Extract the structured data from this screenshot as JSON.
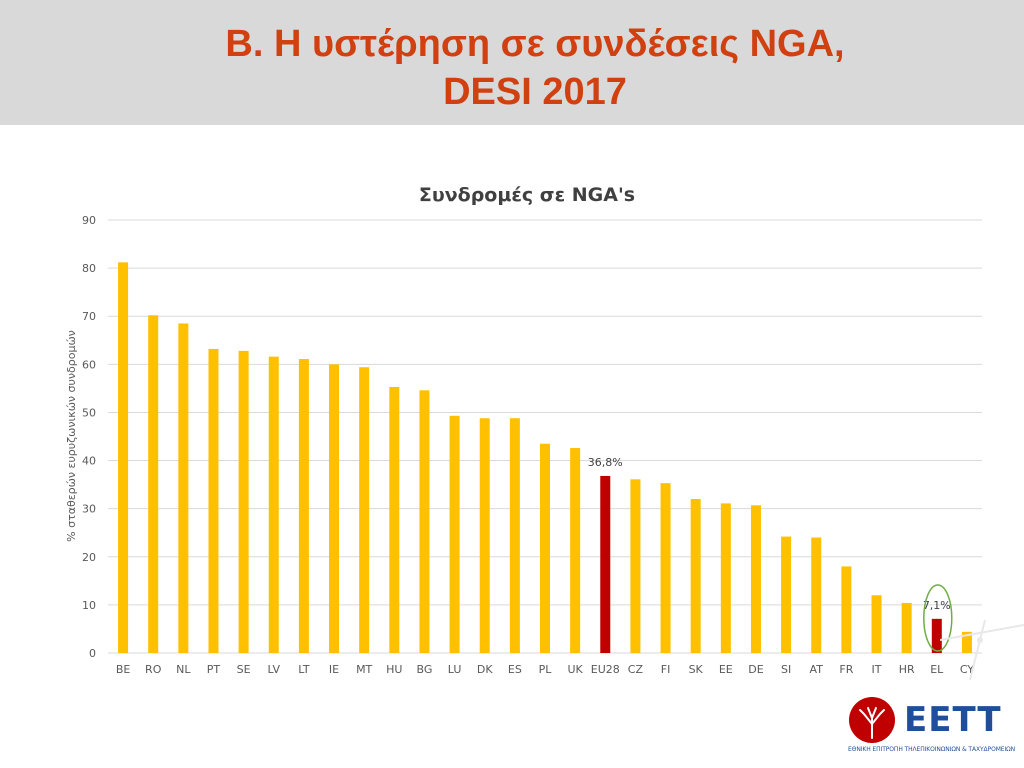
{
  "slide": {
    "title_line1": "B. Η υστέρηση σε συνδέσεις NGA,",
    "title_line2": "DESI 2017"
  },
  "chart_data": {
    "type": "bar",
    "title": "Συνδρομές σε NGA's",
    "xlabel": "",
    "ylabel": "% σταθερών ευρυζωνικών συνδρομών",
    "ylim": [
      0,
      90
    ],
    "yticks": [
      0,
      10,
      20,
      30,
      40,
      50,
      60,
      70,
      80,
      90
    ],
    "grid": true,
    "categories": [
      "BE",
      "RO",
      "NL",
      "PT",
      "SE",
      "LV",
      "LT",
      "IE",
      "MT",
      "HU",
      "BG",
      "LU",
      "DK",
      "ES",
      "PL",
      "UK",
      "EU28",
      "CZ",
      "FI",
      "SK",
      "EE",
      "DE",
      "SI",
      "AT",
      "FR",
      "IT",
      "HR",
      "EL",
      "CY"
    ],
    "values": [
      81.2,
      70.2,
      68.5,
      63.2,
      62.8,
      61.6,
      61.1,
      60.0,
      59.4,
      55.3,
      54.6,
      49.3,
      48.8,
      48.8,
      43.5,
      42.6,
      36.8,
      36.1,
      35.3,
      32.0,
      31.1,
      30.7,
      24.2,
      24.0,
      18.0,
      12.0,
      10.4,
      7.1,
      4.4
    ],
    "colors": {
      "default": "#ffc000",
      "highlight": "#c00000",
      "highlight_categories": [
        "EU28",
        "EL"
      ],
      "circle": "#70ad47",
      "grid": "#d9d9d9",
      "axis_text": "#595959"
    },
    "data_labels": [
      {
        "category": "EU28",
        "text": "36,8%"
      },
      {
        "category": "EL",
        "text": "7,1%"
      }
    ],
    "circled_category": "EL"
  },
  "logo": {
    "name": "EETT",
    "subtitle": "ΕΘΝΙΚΗ ΕΠΙΤΡΟΠΗ ΤΗΛΕΠΙΚΟΙΝΩΝΙΩΝ & ΤΑΧΥΔΡΟΜΕΙΩΝ",
    "color": "#1f4e9b",
    "emblem_color": "#c00000"
  }
}
